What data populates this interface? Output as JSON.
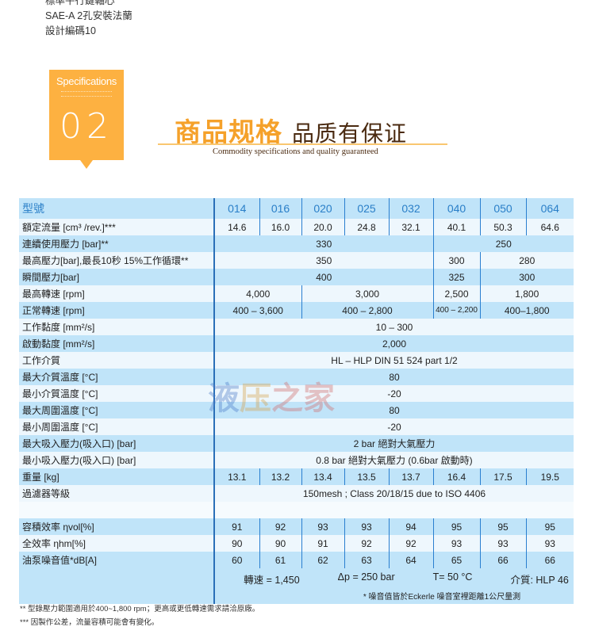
{
  "intro_lines": [
    "標準平行鍵軸心",
    "SAE-A 2孔安裝法蘭",
    "設計編碼10"
  ],
  "badge": {
    "label": "Specifications",
    "number": "02"
  },
  "heading": {
    "main": "商品规格",
    "secondary": "品质有保证",
    "subtitle": "Commodity specifications and quality guaranteed"
  },
  "colors": {
    "badge": "#fdb141",
    "row_blue": "#c0e4f9",
    "row_light": "#eef7fd",
    "header_text": "#2a7fc8",
    "divider": "#2a6fb8"
  },
  "watermark": "液压之家",
  "table": {
    "header": {
      "label": "型號",
      "models": [
        "014",
        "016",
        "020",
        "025",
        "032",
        "040",
        "050",
        "064"
      ]
    },
    "rows": [
      {
        "label": "額定流量 [cm³ /rev.]***",
        "cells": [
          [
            "14.6",
            1
          ],
          [
            "16.0",
            1
          ],
          [
            "20.0",
            1
          ],
          [
            "24.8",
            1
          ],
          [
            "32.1",
            1
          ],
          [
            "40.1",
            1
          ],
          [
            "50.3",
            1
          ],
          [
            "64.6",
            1
          ]
        ]
      },
      {
        "label": "連續使用壓力 [bar]**",
        "cells": [
          [
            "330",
            5
          ],
          [
            "250",
            3
          ]
        ]
      },
      {
        "label": "最高壓力[bar],最長10秒 15%工作循環**",
        "cells": [
          [
            "350",
            5
          ],
          [
            "300",
            1
          ],
          [
            "280",
            2
          ]
        ]
      },
      {
        "label": "瞬間壓力[bar]",
        "cells": [
          [
            "400",
            5
          ],
          [
            "325",
            1
          ],
          [
            "300",
            2
          ]
        ]
      },
      {
        "label": "最高轉速 [rpm]",
        "cells": [
          [
            "4,000",
            2
          ],
          [
            "3,000",
            3
          ],
          [
            "2,500",
            1
          ],
          [
            "1,800",
            2
          ]
        ]
      },
      {
        "label": "正常轉速 [rpm]",
        "cells": [
          [
            "400 – 3,600",
            2
          ],
          [
            "400 – 2,800",
            3
          ],
          [
            "400 – 2,200",
            1,
            "small"
          ],
          [
            "400–1,800",
            2
          ]
        ]
      },
      {
        "label": "工作黏度 [mm²/s]",
        "cells": [
          [
            "10 – 300",
            8
          ]
        ]
      },
      {
        "label": "啟動黏度 [mm²/s]",
        "cells": [
          [
            "2,000",
            8
          ]
        ]
      },
      {
        "label": "工作介質",
        "cells": [
          [
            "HL – HLP DIN 51 524 part 1/2",
            8
          ]
        ]
      },
      {
        "label": "最大介質溫度 [°C]",
        "cells": [
          [
            "80",
            8
          ]
        ]
      },
      {
        "label": "最小介質溫度 [°C]",
        "cells": [
          [
            "-20",
            8
          ]
        ]
      },
      {
        "label": "最大周圍溫度 [°C]",
        "cells": [
          [
            "80",
            8
          ]
        ]
      },
      {
        "label": "最小周圍溫度 [°C]",
        "cells": [
          [
            "-20",
            8
          ]
        ]
      },
      {
        "label": "最大吸入壓力(吸入口) [bar]",
        "cells": [
          [
            "2 bar 絕對大氣壓力",
            8
          ]
        ]
      },
      {
        "label": "最小吸入壓力(吸入口) [bar]",
        "cells": [
          [
            "0.8 bar 絕對大氣壓力 (0.6bar 啟動時)",
            8
          ]
        ]
      },
      {
        "label": "重量 [kg]",
        "cells": [
          [
            "13.1",
            1
          ],
          [
            "13.2",
            1
          ],
          [
            "13.4",
            1
          ],
          [
            "13.5",
            1
          ],
          [
            "13.7",
            1
          ],
          [
            "16.4",
            1
          ],
          [
            "17.5",
            1
          ],
          [
            "19.5",
            1
          ]
        ]
      },
      {
        "label": "過濾器等級",
        "cells": [
          [
            "150mesh ; Class 20/18/15 due to ISO 4406",
            8
          ]
        ]
      },
      {
        "label": "",
        "cells": [
          [
            "",
            8
          ]
        ]
      },
      {
        "label": "容積效率 ηvol[%]",
        "cells": [
          [
            "91",
            1
          ],
          [
            "92",
            1
          ],
          [
            "93",
            1
          ],
          [
            "93",
            1
          ],
          [
            "94",
            1
          ],
          [
            "95",
            1
          ],
          [
            "95",
            1
          ],
          [
            "95",
            1
          ]
        ]
      },
      {
        "label": "全效率 ηhm[%]",
        "cells": [
          [
            "90",
            1
          ],
          [
            "90",
            1
          ],
          [
            "91",
            1
          ],
          [
            "92",
            1
          ],
          [
            "92",
            1
          ],
          [
            "93",
            1
          ],
          [
            "93",
            1
          ],
          [
            "93",
            1
          ]
        ]
      },
      {
        "label": "油泵噪音值*dB[A]",
        "cells": [
          [
            "60",
            1
          ],
          [
            "61",
            1
          ],
          [
            "62",
            1
          ],
          [
            "63",
            1
          ],
          [
            "64",
            1
          ],
          [
            "65",
            1
          ],
          [
            "66",
            1
          ],
          [
            "66",
            1
          ]
        ]
      }
    ],
    "conditions": [
      "轉速 = 1,450",
      "Δp = 250 bar",
      "T= 50 °C",
      "介質: HLP 46"
    ],
    "noise_note": "* 噪音值皆於Eckerle 噪音室裡距離1公尺量測"
  },
  "footnotes": [
    "** 型錄壓力範圍適用於400~1,800 rpm；更高或更低轉速需求請洽原廠。",
    "*** 因製作公差，流量容積可能會有變化。"
  ]
}
